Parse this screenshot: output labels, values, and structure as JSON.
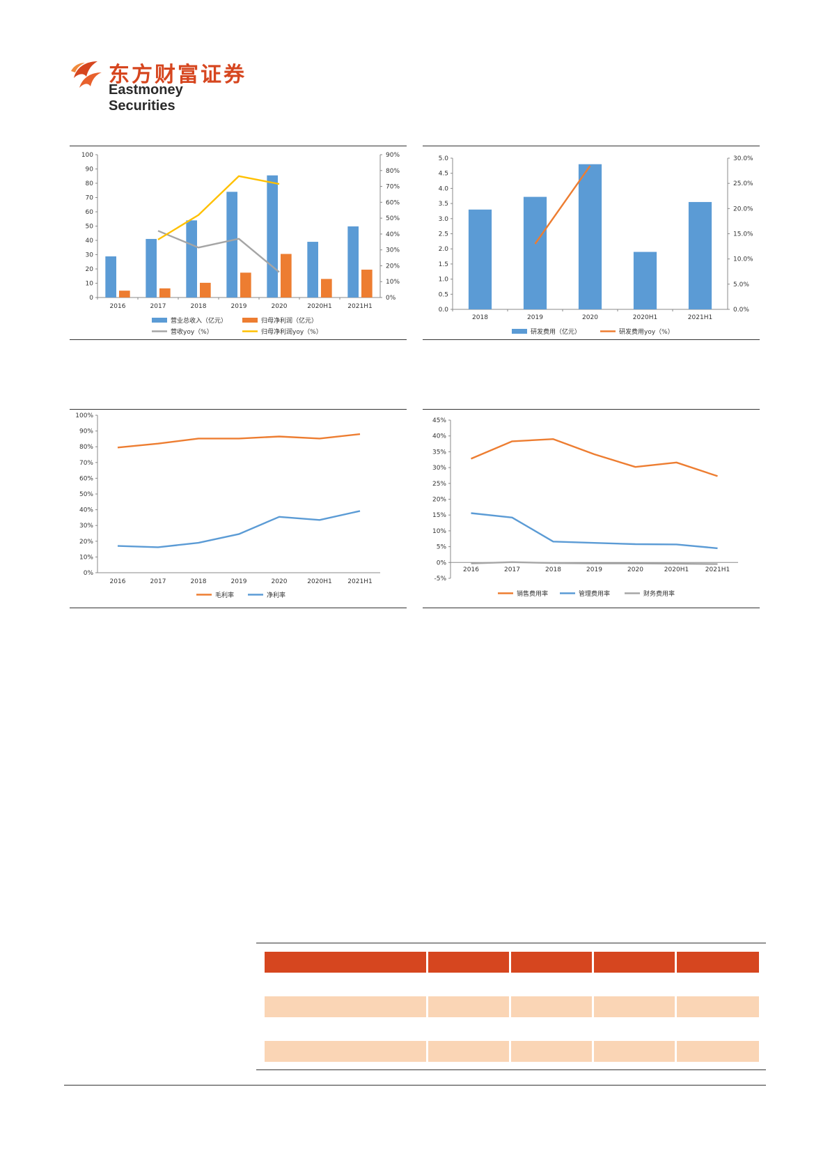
{
  "brand": {
    "name_zh": "东方财富证券",
    "name_en": "Eastmoney Securities",
    "color": "#d6461f"
  },
  "colors": {
    "blue": "#5b9bd5",
    "orange": "#ed7d31",
    "gray": "#a5a5a5",
    "gold": "#ffc000",
    "table_header": "#d6461f",
    "table_band": "#fad5b5"
  },
  "chart_data": [
    {
      "type": "bar",
      "categories": [
        "2016",
        "2017",
        "2018",
        "2019",
        "2020",
        "2020H1",
        "2021H1"
      ],
      "ylim": [
        0,
        100
      ],
      "yticks": [
        "0",
        "10",
        "20",
        "30",
        "40",
        "50",
        "60",
        "70",
        "80",
        "90",
        "100"
      ],
      "y2lim": [
        0,
        90
      ],
      "y2ticks": [
        "0%",
        "10%",
        "20%",
        "30%",
        "40%",
        "50%",
        "60%",
        "70%",
        "80%",
        "90%"
      ],
      "series": [
        {
          "name": "营业总收入（亿元）",
          "kind": "bar",
          "axis": "left",
          "color": "#5b9bd5",
          "values": [
            28.8,
            41,
            54,
            74,
            85.5,
            39,
            49.8
          ]
        },
        {
          "name": "归母净利润（亿元）",
          "kind": "bar",
          "axis": "left",
          "color": "#ed7d31",
          "values": [
            4.8,
            6.4,
            10.3,
            17.4,
            30.5,
            13,
            19.5
          ]
        },
        {
          "name": "营收yoy（%）",
          "kind": "line",
          "axis": "right",
          "color": "#a5a5a5",
          "values": [
            null,
            42,
            31.5,
            37,
            16,
            null,
            null
          ]
        },
        {
          "name": "归母净利润yoy（%）",
          "kind": "line",
          "axis": "right",
          "color": "#ffc000",
          "values": [
            null,
            36.5,
            52,
            76.5,
            71.5,
            null,
            null
          ]
        }
      ],
      "legend": "bottom"
    },
    {
      "type": "bar",
      "categories": [
        "2018",
        "2019",
        "2020",
        "2020H1",
        "2021H1"
      ],
      "ylim": [
        0,
        5
      ],
      "yticks": [
        "0.0",
        "0.5",
        "1.0",
        "1.5",
        "2.0",
        "2.5",
        "3.0",
        "3.5",
        "4.0",
        "4.5",
        "5.0"
      ],
      "y2lim": [
        0,
        30
      ],
      "y2ticks": [
        "0.0%",
        "5.0%",
        "10.0%",
        "15.0%",
        "20.0%",
        "25.0%",
        "30.0%"
      ],
      "series": [
        {
          "name": "研发费用（亿元）",
          "kind": "bar",
          "axis": "left",
          "color": "#5b9bd5",
          "values": [
            3.3,
            3.72,
            4.8,
            1.9,
            3.55
          ]
        },
        {
          "name": "研发费用yoy（%）",
          "kind": "line",
          "axis": "right",
          "color": "#ed7d31",
          "values": [
            null,
            13,
            28.5,
            null,
            null
          ]
        }
      ],
      "legend": "bottom"
    },
    {
      "type": "line",
      "categories": [
        "2016",
        "2017",
        "2018",
        "2019",
        "2020",
        "2020H1",
        "2021H1"
      ],
      "ylim": [
        0,
        100
      ],
      "yticks": [
        "0%",
        "10%",
        "20%",
        "30%",
        "40%",
        "50%",
        "60%",
        "70%",
        "80%",
        "90%",
        "100%"
      ],
      "series": [
        {
          "name": "毛利率",
          "color": "#ed7d31",
          "values": [
            79.5,
            82,
            85.2,
            85.2,
            86.5,
            85.2,
            88
          ]
        },
        {
          "name": "净利率",
          "color": "#5b9bd5",
          "values": [
            17,
            16.2,
            19,
            24.5,
            35.5,
            33.5,
            39.2
          ]
        }
      ],
      "legend": "bottom"
    },
    {
      "type": "line",
      "categories": [
        "2016",
        "2017",
        "2018",
        "2019",
        "2020",
        "2020H1",
        "2021H1"
      ],
      "ylim": [
        -5,
        45
      ],
      "yticks": [
        "-5%",
        "0%",
        "5%",
        "10%",
        "15%",
        "20%",
        "25%",
        "30%",
        "35%",
        "40%",
        "45%"
      ],
      "series": [
        {
          "name": "销售费用率",
          "color": "#ed7d31",
          "values": [
            32.8,
            38.3,
            39,
            34.2,
            30.2,
            31.6,
            27.3
          ]
        },
        {
          "name": "管理费用率",
          "color": "#5b9bd5",
          "values": [
            15.6,
            14.2,
            6.6,
            6.2,
            5.8,
            5.7,
            4.5
          ]
        },
        {
          "name": "财务费用率",
          "color": "#a5a5a5",
          "values": [
            -0.3,
            0.1,
            -0.2,
            -0.3,
            -0.3,
            -0.4,
            -0.5
          ]
        }
      ],
      "legend": "bottom"
    }
  ]
}
